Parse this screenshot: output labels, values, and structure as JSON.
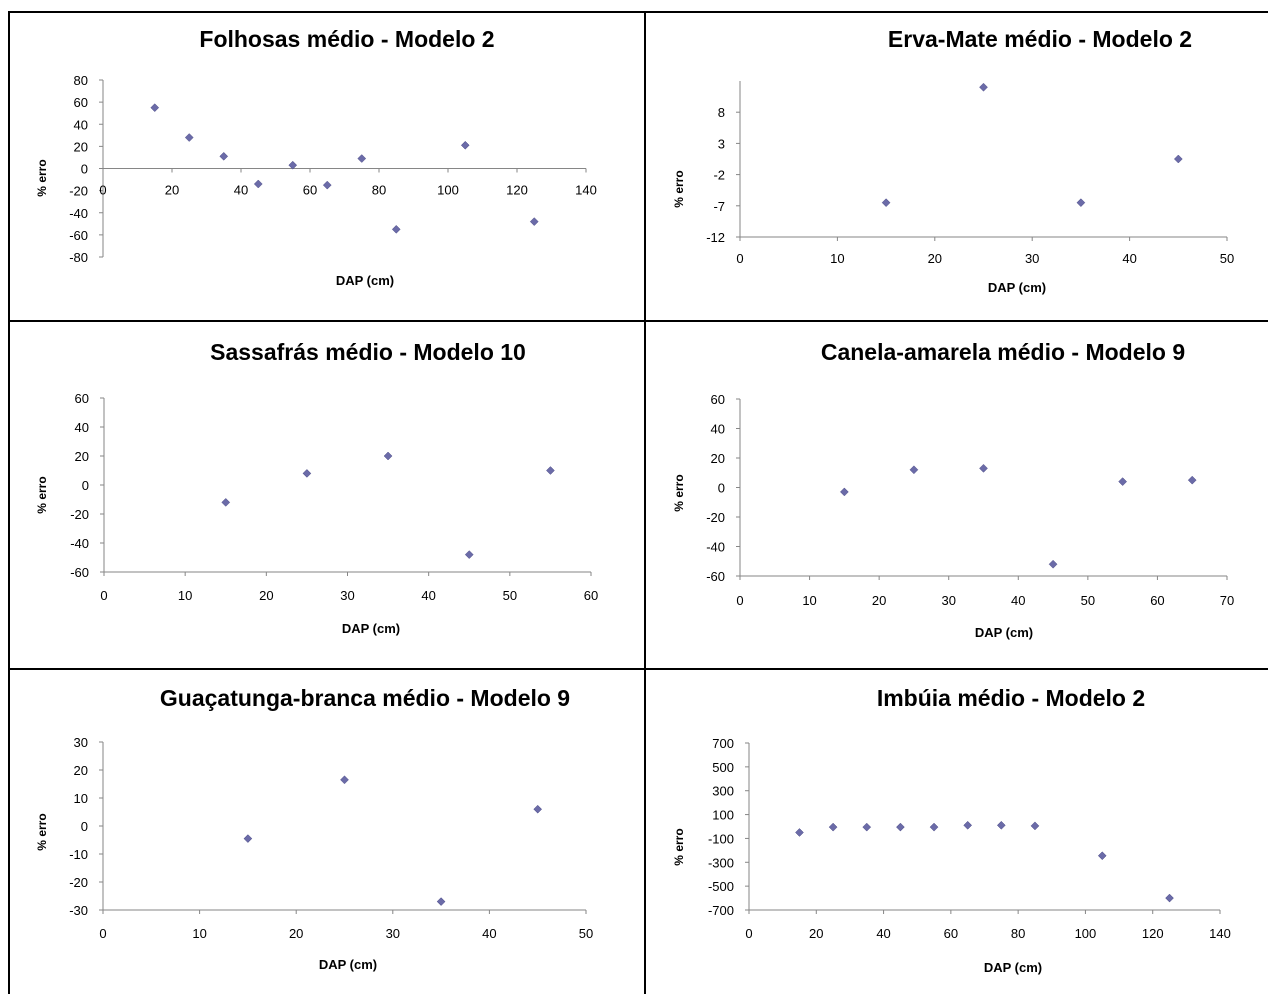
{
  "chart_data": [
    {
      "type": "scatter",
      "title": "Folhosas médio - Modelo 2",
      "xlabel": "DAP (cm)",
      "ylabel": "% erro",
      "xlim": [
        0,
        140
      ],
      "ylim": [
        -80,
        80
      ],
      "xticks": [
        0,
        20,
        40,
        60,
        80,
        100,
        120,
        140
      ],
      "yticks": [
        -80,
        -60,
        -40,
        -20,
        0,
        20,
        40,
        60,
        80
      ],
      "x_axis_at_zero": true,
      "marker_color": "#6b6ba8",
      "points": [
        [
          15,
          55
        ],
        [
          25,
          28
        ],
        [
          35,
          11
        ],
        [
          45,
          -14
        ],
        [
          55,
          3
        ],
        [
          65,
          -15
        ],
        [
          75,
          9
        ],
        [
          85,
          -55
        ],
        [
          105,
          21
        ],
        [
          125,
          -48
        ]
      ]
    },
    {
      "type": "scatter",
      "title": "Erva-Mate médio - Modelo 2",
      "xlabel": "DAP (cm)",
      "ylabel": "% erro",
      "xlim": [
        0,
        50
      ],
      "ylim": [
        -12,
        13
      ],
      "xticks": [
        0,
        10,
        20,
        30,
        40,
        50
      ],
      "yticks": [
        -12,
        -7,
        -2,
        3,
        8
      ],
      "marker_color": "#6b6ba8",
      "points": [
        [
          15,
          -6.5
        ],
        [
          25,
          12
        ],
        [
          35,
          -6.5
        ],
        [
          45,
          0.5
        ]
      ]
    },
    {
      "type": "scatter",
      "title": "Sassafrás médio - Modelo 10",
      "xlabel": "DAP (cm)",
      "ylabel": "% erro",
      "xlim": [
        0,
        60
      ],
      "ylim": [
        -60,
        60
      ],
      "xticks": [
        0,
        10,
        20,
        30,
        40,
        50,
        60
      ],
      "yticks": [
        -60,
        -40,
        -20,
        0,
        20,
        40,
        60
      ],
      "marker_color": "#6b6ba8",
      "points": [
        [
          15,
          -12
        ],
        [
          25,
          8
        ],
        [
          35,
          20
        ],
        [
          45,
          -48
        ],
        [
          55,
          10
        ]
      ]
    },
    {
      "type": "scatter",
      "title": "Canela-amarela médio - Modelo 9",
      "xlabel": "DAP (cm)",
      "ylabel": "% erro",
      "xlim": [
        0,
        70
      ],
      "ylim": [
        -60,
        60
      ],
      "xticks": [
        0,
        10,
        20,
        30,
        40,
        50,
        60,
        70
      ],
      "yticks": [
        -60,
        -40,
        -20,
        0,
        20,
        40,
        60
      ],
      "marker_color": "#6b6ba8",
      "points": [
        [
          15,
          -3
        ],
        [
          25,
          12
        ],
        [
          35,
          13
        ],
        [
          45,
          -52
        ],
        [
          55,
          4
        ],
        [
          65,
          5
        ]
      ]
    },
    {
      "type": "scatter",
      "title": "Guaçatunga-branca médio - Modelo 9",
      "xlabel": "DAP (cm)",
      "ylabel": "% erro",
      "xlim": [
        0,
        50
      ],
      "ylim": [
        -30,
        30
      ],
      "xticks": [
        0,
        10,
        20,
        30,
        40,
        50
      ],
      "yticks": [
        -30,
        -20,
        -10,
        0,
        10,
        20,
        30
      ],
      "marker_color": "#6b6ba8",
      "points": [
        [
          15,
          -4.5
        ],
        [
          25,
          16.5
        ],
        [
          35,
          -27
        ],
        [
          45,
          6
        ]
      ]
    },
    {
      "type": "scatter",
      "title": "Imbúia médio - Modelo 2",
      "xlabel": "DAP (cm)",
      "ylabel": "% erro",
      "xlim": [
        0,
        140
      ],
      "ylim": [
        -700,
        700
      ],
      "xticks": [
        0,
        20,
        40,
        60,
        80,
        100,
        120,
        140
      ],
      "yticks": [
        -700,
        -500,
        -300,
        -100,
        100,
        300,
        500,
        700
      ],
      "marker_color": "#6b6ba8",
      "points": [
        [
          15,
          -50
        ],
        [
          25,
          -5
        ],
        [
          35,
          -5
        ],
        [
          45,
          -5
        ],
        [
          55,
          -5
        ],
        [
          65,
          10
        ],
        [
          75,
          10
        ],
        [
          85,
          5
        ],
        [
          105,
          -245
        ],
        [
          125,
          -600
        ]
      ]
    }
  ]
}
